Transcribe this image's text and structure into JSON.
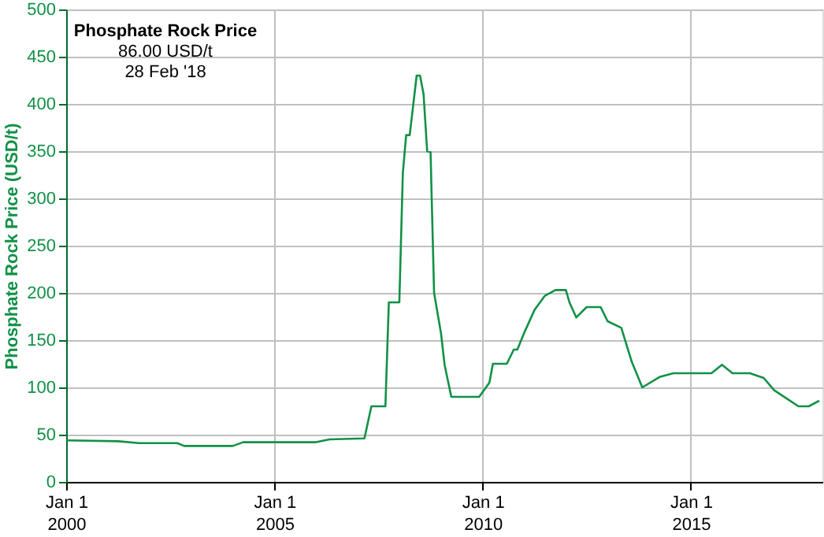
{
  "chart_data": {
    "type": "line",
    "title": "Phosphate Rock Price",
    "ylabel": "Phosphate Rock Price (USD/t)",
    "annotations": [
      "86.00 USD/t",
      "28 Feb '18"
    ],
    "x": [
      "2000-01",
      "2001-04",
      "2001-10",
      "2002-09",
      "2002-11",
      "2004-01",
      "2004-04",
      "2006-01",
      "2006-05",
      "2007-03",
      "2007-05",
      "2007-09",
      "2007-10",
      "2008-01",
      "2008-02",
      "2008-03",
      "2008-04",
      "2008-06",
      "2008-07",
      "2008-08",
      "2008-09",
      "2008-10",
      "2008-11",
      "2009-01",
      "2009-02",
      "2009-04",
      "2009-06",
      "2009-12",
      "2010-03",
      "2010-04",
      "2010-08",
      "2010-10",
      "2010-11",
      "2011-01",
      "2011-04",
      "2011-07",
      "2011-10",
      "2012-01",
      "2012-02",
      "2012-04",
      "2012-07",
      "2012-11",
      "2013-01",
      "2013-05",
      "2013-08",
      "2013-11",
      "2014-04",
      "2014-08",
      "2015-07",
      "2015-10",
      "2016-01",
      "2016-06",
      "2016-10",
      "2017-01",
      "2017-08",
      "2017-11",
      "2018-02"
    ],
    "series": [
      {
        "color": "#119147",
        "values": [
          44,
          43,
          41,
          41,
          38,
          38,
          42,
          42,
          45,
          46,
          80,
          80,
          190,
          190,
          327,
          367,
          367,
          430,
          430,
          410,
          350,
          349,
          200,
          157,
          124,
          90,
          90,
          90,
          105,
          125,
          125,
          140,
          140,
          158,
          182,
          197,
          203,
          203,
          190,
          174,
          185,
          185,
          170,
          163,
          127,
          100,
          111,
          115,
          115,
          124,
          115,
          115,
          110,
          97,
          80,
          80,
          86
        ]
      }
    ],
    "xlim": [
      "2000-01-01",
      "2018-02-28"
    ],
    "xticks": [
      {
        "value": "2000-01-01",
        "label": "Jan 1\n2000"
      },
      {
        "value": "2005-01-01",
        "label": "Jan 1\n2005"
      },
      {
        "value": "2010-01-01",
        "label": "Jan 1\n2010"
      },
      {
        "value": "2015-01-01",
        "label": "Jan 1\n2015"
      }
    ],
    "ylim": [
      0,
      500
    ],
    "yticks": [
      0,
      50,
      100,
      150,
      200,
      250,
      300,
      350,
      400,
      450,
      500
    ],
    "grid": true,
    "marker": "none",
    "line_style": "solid"
  }
}
